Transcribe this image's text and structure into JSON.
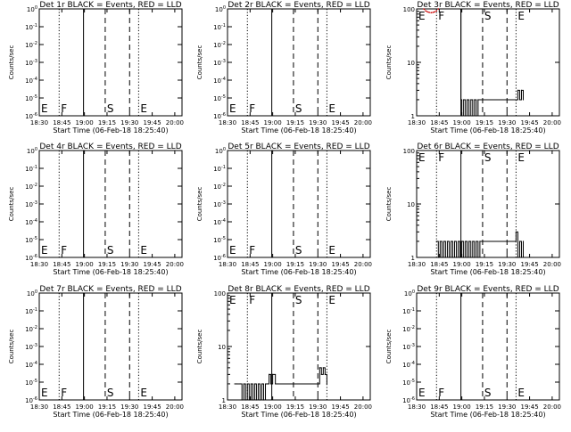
{
  "window": {
    "background": "#ffffff",
    "foreground": "#000000",
    "lld_color": "#cc0000"
  },
  "common": {
    "x_tick_labels": [
      "18:30",
      "18:45",
      "19:00",
      "19:15",
      "19:30",
      "19:45",
      "20:00"
    ],
    "x_tick_hours": [
      18.5,
      18.75,
      19.0,
      19.25,
      19.5,
      19.75,
      20.0
    ],
    "xlim_hours": [
      18.5,
      20.08
    ],
    "xlabel": "Start Time (06-Feb-18 18:25:40)",
    "ylabel": "Counts/sec",
    "markers": [
      {
        "label": "E",
        "hour": 18.5,
        "style": "dotted"
      },
      {
        "label": "F",
        "hour": 18.72,
        "style": "solid"
      },
      {
        "label": "S",
        "hour": 19.23,
        "style": "dashed"
      },
      {
        "label": "E",
        "hour": 19.6,
        "style": "dotted"
      }
    ],
    "marker_lines": [
      {
        "hour": 18.72,
        "style": "dotted"
      },
      {
        "hour": 18.99,
        "style": "solid"
      },
      {
        "hour": 19.23,
        "style": "dashed"
      },
      {
        "hour": 19.5,
        "style": "dashed"
      },
      {
        "hour": 19.6,
        "style": "dotted"
      }
    ]
  },
  "chart_data": [
    {
      "type": "line",
      "title": "Det 1r BLACK = Events, RED = LLD",
      "yscale": "log",
      "ylim": [
        1e-06,
        1
      ],
      "events": [],
      "lld": [],
      "y_ticks": [
        {
          "v": 1,
          "base": "10",
          "exp": "0"
        },
        {
          "v": 0.1,
          "base": "10",
          "exp": "-1"
        },
        {
          "v": 0.01,
          "base": "10",
          "exp": "-2"
        },
        {
          "v": 0.001,
          "base": "10",
          "exp": "-3"
        },
        {
          "v": 0.0001,
          "base": "10",
          "exp": "-4"
        },
        {
          "v": 1e-05,
          "base": "10",
          "exp": "-5"
        },
        {
          "v": 1e-06,
          "base": "10",
          "exp": "-6"
        }
      ]
    },
    {
      "type": "line",
      "title": "Det 2r BLACK = Events, RED = LLD",
      "yscale": "log",
      "ylim": [
        1e-06,
        1
      ],
      "events": [],
      "lld": [],
      "y_ticks": [
        {
          "v": 1,
          "base": "10",
          "exp": "0"
        },
        {
          "v": 0.1,
          "base": "10",
          "exp": "-1"
        },
        {
          "v": 0.01,
          "base": "10",
          "exp": "-2"
        },
        {
          "v": 0.001,
          "base": "10",
          "exp": "-3"
        },
        {
          "v": 0.0001,
          "base": "10",
          "exp": "-4"
        },
        {
          "v": 1e-05,
          "base": "10",
          "exp": "-5"
        },
        {
          "v": 1e-06,
          "base": "10",
          "exp": "-6"
        }
      ]
    },
    {
      "type": "line",
      "title": "Det 3r BLACK = Events, RED = LLD",
      "yscale": "log",
      "ylim": [
        1,
        100
      ],
      "y_ticks": [
        {
          "v": 1,
          "base": "1",
          "exp": ""
        },
        {
          "v": 10,
          "base": "10",
          "exp": ""
        },
        {
          "v": 100,
          "base": "100",
          "exp": ""
        }
      ],
      "events": [
        {
          "x": 18.74,
          "y": 100
        },
        {
          "x": 18.99,
          "y": 2
        },
        {
          "x": 19.0,
          "y": 1
        },
        {
          "x": 19.02,
          "y": 2
        },
        {
          "x": 19.04,
          "y": 1
        },
        {
          "x": 19.06,
          "y": 2
        },
        {
          "x": 19.08,
          "y": 1
        },
        {
          "x": 19.1,
          "y": 2
        },
        {
          "x": 19.12,
          "y": 1
        },
        {
          "x": 19.14,
          "y": 2
        },
        {
          "x": 19.16,
          "y": 1
        },
        {
          "x": 19.18,
          "y": 2
        },
        {
          "x": 19.62,
          "y": 3
        },
        {
          "x": 19.64,
          "y": 2
        },
        {
          "x": 19.66,
          "y": 3
        },
        {
          "x": 19.68,
          "y": 2
        }
      ],
      "lld": [
        {
          "x": 18.58,
          "y": 100
        },
        {
          "x": 18.6,
          "y": 92
        },
        {
          "x": 18.62,
          "y": 88
        },
        {
          "x": 18.64,
          "y": 86
        },
        {
          "x": 18.66,
          "y": 85
        },
        {
          "x": 18.68,
          "y": 86
        },
        {
          "x": 18.7,
          "y": 88
        },
        {
          "x": 18.72,
          "y": 92
        },
        {
          "x": 18.74,
          "y": 100
        }
      ]
    },
    {
      "type": "line",
      "title": "Det 4r BLACK = Events, RED = LLD",
      "yscale": "log",
      "ylim": [
        1e-06,
        1
      ],
      "events": [],
      "lld": [],
      "y_ticks": [
        {
          "v": 1,
          "base": "10",
          "exp": "0"
        },
        {
          "v": 0.1,
          "base": "10",
          "exp": "-1"
        },
        {
          "v": 0.01,
          "base": "10",
          "exp": "-2"
        },
        {
          "v": 0.001,
          "base": "10",
          "exp": "-3"
        },
        {
          "v": 0.0001,
          "base": "10",
          "exp": "-4"
        },
        {
          "v": 1e-05,
          "base": "10",
          "exp": "-5"
        },
        {
          "v": 1e-06,
          "base": "10",
          "exp": "-6"
        }
      ]
    },
    {
      "type": "line",
      "title": "Det 5r BLACK = Events, RED = LLD",
      "yscale": "log",
      "ylim": [
        1e-06,
        1
      ],
      "events": [],
      "lld": [],
      "y_ticks": [
        {
          "v": 1,
          "base": "10",
          "exp": "0"
        },
        {
          "v": 0.1,
          "base": "10",
          "exp": "-1"
        },
        {
          "v": 0.01,
          "base": "10",
          "exp": "-2"
        },
        {
          "v": 0.001,
          "base": "10",
          "exp": "-3"
        },
        {
          "v": 0.0001,
          "base": "10",
          "exp": "-4"
        },
        {
          "v": 1e-05,
          "base": "10",
          "exp": "-5"
        },
        {
          "v": 1e-06,
          "base": "10",
          "exp": "-6"
        }
      ]
    },
    {
      "type": "line",
      "title": "Det 6r BLACK = Events, RED = LLD",
      "yscale": "log",
      "ylim": [
        1,
        100
      ],
      "y_ticks": [
        {
          "v": 1,
          "base": "1",
          "exp": ""
        },
        {
          "v": 10,
          "base": "10",
          "exp": ""
        },
        {
          "v": 100,
          "base": "100",
          "exp": ""
        }
      ],
      "events": [
        {
          "x": 18.72,
          "y": 2
        },
        {
          "x": 18.74,
          "y": 1
        },
        {
          "x": 18.76,
          "y": 2
        },
        {
          "x": 18.78,
          "y": 1
        },
        {
          "x": 18.8,
          "y": 2
        },
        {
          "x": 18.82,
          "y": 1
        },
        {
          "x": 18.84,
          "y": 2
        },
        {
          "x": 18.86,
          "y": 1
        },
        {
          "x": 18.88,
          "y": 2
        },
        {
          "x": 18.9,
          "y": 1
        },
        {
          "x": 18.92,
          "y": 2
        },
        {
          "x": 18.94,
          "y": 1
        },
        {
          "x": 18.96,
          "y": 2
        },
        {
          "x": 18.98,
          "y": 1
        },
        {
          "x": 19.0,
          "y": 2
        },
        {
          "x": 19.02,
          "y": 1
        },
        {
          "x": 19.04,
          "y": 2
        },
        {
          "x": 19.06,
          "y": 1
        },
        {
          "x": 19.08,
          "y": 2
        },
        {
          "x": 19.1,
          "y": 1
        },
        {
          "x": 19.12,
          "y": 2
        },
        {
          "x": 19.14,
          "y": 1
        },
        {
          "x": 19.16,
          "y": 2
        },
        {
          "x": 19.18,
          "y": 1
        },
        {
          "x": 19.2,
          "y": 2
        },
        {
          "x": 19.6,
          "y": 3
        },
        {
          "x": 19.62,
          "y": 1
        },
        {
          "x": 19.64,
          "y": 2
        },
        {
          "x": 19.66,
          "y": 1
        },
        {
          "x": 19.68,
          "y": 2
        }
      ],
      "lld": []
    },
    {
      "type": "line",
      "title": "Det 7r BLACK = Events, RED = LLD",
      "yscale": "log",
      "ylim": [
        1e-06,
        1
      ],
      "events": [],
      "lld": [],
      "y_ticks": [
        {
          "v": 1,
          "base": "10",
          "exp": "0"
        },
        {
          "v": 0.1,
          "base": "10",
          "exp": "-1"
        },
        {
          "v": 0.01,
          "base": "10",
          "exp": "-2"
        },
        {
          "v": 0.001,
          "base": "10",
          "exp": "-3"
        },
        {
          "v": 0.0001,
          "base": "10",
          "exp": "-4"
        },
        {
          "v": 1e-05,
          "base": "10",
          "exp": "-5"
        },
        {
          "v": 1e-06,
          "base": "10",
          "exp": "-6"
        }
      ]
    },
    {
      "type": "line",
      "title": "Det 8r BLACK = Events, RED = LLD",
      "yscale": "log",
      "ylim": [
        1,
        100
      ],
      "y_ticks": [
        {
          "v": 1,
          "base": "1",
          "exp": ""
        },
        {
          "v": 10,
          "base": "10",
          "exp": ""
        },
        {
          "v": 100,
          "base": "100",
          "exp": ""
        }
      ],
      "events": [
        {
          "x": 18.58,
          "y": 2
        },
        {
          "x": 18.6,
          "y": 2
        },
        {
          "x": 18.64,
          "y": 2
        },
        {
          "x": 18.66,
          "y": 1
        },
        {
          "x": 18.68,
          "y": 2
        },
        {
          "x": 18.7,
          "y": 1
        },
        {
          "x": 18.72,
          "y": 2
        },
        {
          "x": 18.74,
          "y": 1
        },
        {
          "x": 18.76,
          "y": 2
        },
        {
          "x": 18.78,
          "y": 1
        },
        {
          "x": 18.8,
          "y": 2
        },
        {
          "x": 18.82,
          "y": 1
        },
        {
          "x": 18.84,
          "y": 2
        },
        {
          "x": 18.86,
          "y": 1
        },
        {
          "x": 18.88,
          "y": 2
        },
        {
          "x": 18.9,
          "y": 1
        },
        {
          "x": 18.92,
          "y": 2
        },
        {
          "x": 18.94,
          "y": 2
        },
        {
          "x": 18.96,
          "y": 3
        },
        {
          "x": 18.98,
          "y": 2
        },
        {
          "x": 19.0,
          "y": 3
        },
        {
          "x": 19.03,
          "y": 2
        },
        {
          "x": 19.06,
          "y": 2
        },
        {
          "x": 19.52,
          "y": 4
        },
        {
          "x": 19.54,
          "y": 3
        },
        {
          "x": 19.56,
          "y": 4
        },
        {
          "x": 19.58,
          "y": 3
        },
        {
          "x": 19.6,
          "y": 2
        }
      ],
      "lld": []
    },
    {
      "type": "line",
      "title": "Det 9r BLACK = Events, RED = LLD",
      "yscale": "log",
      "ylim": [
        1e-06,
        1
      ],
      "events": [],
      "lld": [],
      "y_ticks": [
        {
          "v": 1,
          "base": "10",
          "exp": "0"
        },
        {
          "v": 0.1,
          "base": "10",
          "exp": "-1"
        },
        {
          "v": 0.01,
          "base": "10",
          "exp": "-2"
        },
        {
          "v": 0.001,
          "base": "10",
          "exp": "-3"
        },
        {
          "v": 0.0001,
          "base": "10",
          "exp": "-4"
        },
        {
          "v": 1e-05,
          "base": "10",
          "exp": "-5"
        },
        {
          "v": 1e-06,
          "base": "10",
          "exp": "-6"
        }
      ]
    }
  ]
}
